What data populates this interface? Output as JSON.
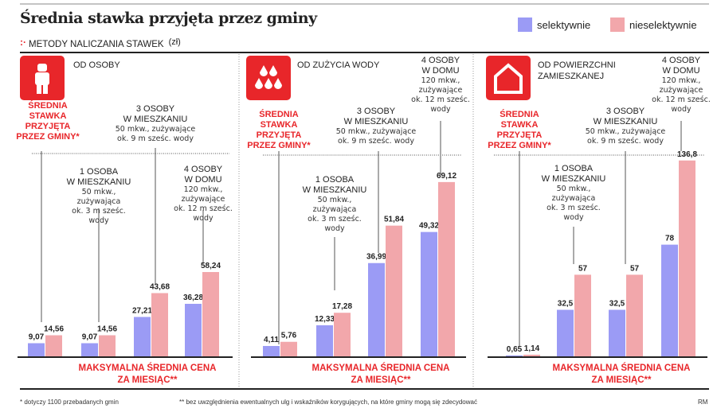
{
  "title": "Średnia stawka przyjęta przez gminy",
  "subtitle": "METODY NALICZANIA STAWEK",
  "unit": "(zł)",
  "legend": {
    "selective": "selektywnie",
    "nonselective": "nieselektywnie"
  },
  "colors": {
    "selective": "#9b9bf5",
    "nonselective": "#f2a7ab",
    "accent": "#e8262a"
  },
  "avg_label": "ŚREDNIA\nSTAWKA\nPRZYJĘTA\nPRZEZ GMINY*",
  "max_label": "MAKSYMALNA ŚREDNIA CENA\nZA MIESIĄC**",
  "groups": {
    "g2": {
      "h": "1 OSOBA\nW MIESZKANIU",
      "d": "50 mkw.,\nzużywająca\nok. 3 m sześc.\nwody"
    },
    "g3": {
      "h": "3 OSOBY\nW MIESZKANIU",
      "d": "50 mkw., zużywające\nok. 9 m sześc. wody"
    },
    "g4": {
      "h": "4 OSOBY\nW DOMU",
      "d": "120 mkw.,\nzużywające\nok. 12 m sześc.\nwody"
    }
  },
  "footnotes": {
    "f1": "* dotyczy 1100 przebadanych gmin",
    "f2": "** bez uwzględnienia ewentualnych ulg i wskaźników korygujących, na które gminy mogą się zdecydować",
    "credit": "RM"
  },
  "chart_data": [
    {
      "type": "bar",
      "title": "OD OSOBY",
      "categories": [
        "Średnia stawka przyjęta przez gminy",
        "1 osoba w mieszkaniu",
        "3 osoby w mieszkaniu",
        "4 osoby w domu"
      ],
      "series": [
        {
          "name": "selektywnie",
          "values": [
            9.07,
            9.07,
            27.21,
            36.28
          ],
          "labels": [
            "9,07",
            "9,07",
            "27,21",
            "36,28"
          ]
        },
        {
          "name": "nieselektywnie",
          "values": [
            14.56,
            14.56,
            43.68,
            58.24
          ],
          "labels": [
            "14,56",
            "14,56",
            "43,68",
            "58,24"
          ]
        }
      ],
      "ylabel": "zł"
    },
    {
      "type": "bar",
      "title": "OD ZUŻYCIA WODY",
      "categories": [
        "Średnia stawka przyjęta przez gminy",
        "1 osoba w mieszkaniu",
        "3 osoby w mieszkaniu",
        "4 osoby w domu"
      ],
      "series": [
        {
          "name": "selektywnie",
          "values": [
            4.11,
            12.33,
            36.99,
            49.32
          ],
          "labels": [
            "4,11",
            "12,33",
            "36,99",
            "49,32"
          ]
        },
        {
          "name": "nieselektywnie",
          "values": [
            5.76,
            17.28,
            51.84,
            69.12
          ],
          "labels": [
            "5,76",
            "17,28",
            "51,84",
            "69,12"
          ]
        }
      ],
      "ylabel": "zł"
    },
    {
      "type": "bar",
      "title": "OD POWIERZCHNI\nZAMIESZKANEJ",
      "categories": [
        "Średnia stawka przyjęta przez gminy",
        "1 osoba w mieszkaniu",
        "3 osoby w mieszkaniu",
        "4 osoby w domu"
      ],
      "series": [
        {
          "name": "selektywnie",
          "values": [
            0.65,
            32.5,
            32.5,
            78
          ],
          "labels": [
            "0,65",
            "32,5",
            "32,5",
            "78"
          ]
        },
        {
          "name": "nieselektywnie",
          "values": [
            1.14,
            57,
            57,
            136.8
          ],
          "labels": [
            "1,14",
            "57",
            "57",
            "136,8"
          ]
        }
      ],
      "ylabel": "zł"
    }
  ]
}
